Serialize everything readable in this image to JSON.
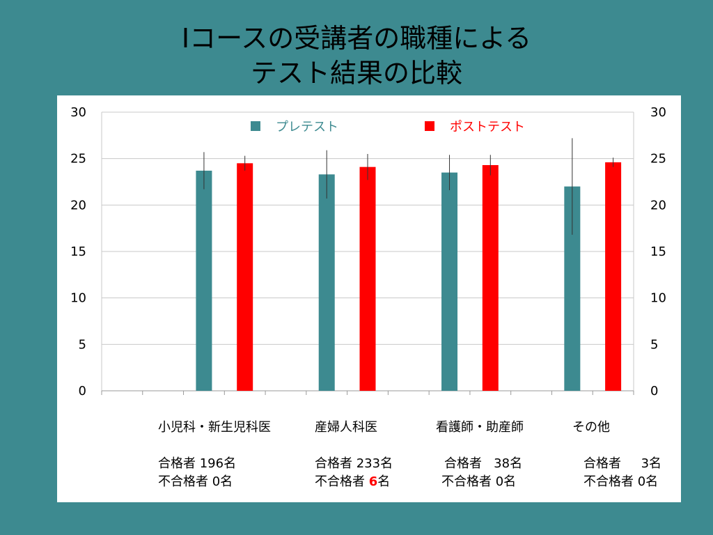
{
  "title": {
    "line1": "Ⅰコースの受講者の職種による",
    "line2": "テスト結果の比較"
  },
  "chart_data": {
    "type": "bar",
    "categories": [
      "小児科・新生児科医",
      "産婦人科医",
      "看護師・助産師",
      "その他"
    ],
    "series": [
      {
        "name": "プレテスト",
        "color": "#3d8a90",
        "values": [
          23.7,
          23.3,
          23.5,
          22.0
        ],
        "error": [
          2.0,
          2.6,
          1.9,
          5.2
        ]
      },
      {
        "name": "ポストテスト",
        "color": "#ff0000",
        "values": [
          24.5,
          24.1,
          24.3,
          24.6
        ],
        "error": [
          0.8,
          1.4,
          1.1,
          0.5
        ]
      }
    ],
    "ylim": [
      0,
      30
    ],
    "yticks": [
      0,
      5,
      10,
      15,
      20,
      25,
      30
    ],
    "legend_position": "top",
    "grid": true,
    "dual_y_axis": true
  },
  "results": [
    {
      "pass_label": "合格者",
      "pass_count": "196名",
      "fail_label": "不合格者",
      "fail_count": "0名"
    },
    {
      "pass_label": "合格者",
      "pass_count": "233名",
      "fail_label": "不合格者",
      "fail_count": "6",
      "fail_unit": "名"
    },
    {
      "pass_label": "合格者",
      "pass_count": "38名",
      "fail_label": "不合格者",
      "fail_count": "0名"
    },
    {
      "pass_label": "合格者",
      "pass_count": "3名",
      "fail_label": "不合格者",
      "fail_count": "0名"
    }
  ]
}
